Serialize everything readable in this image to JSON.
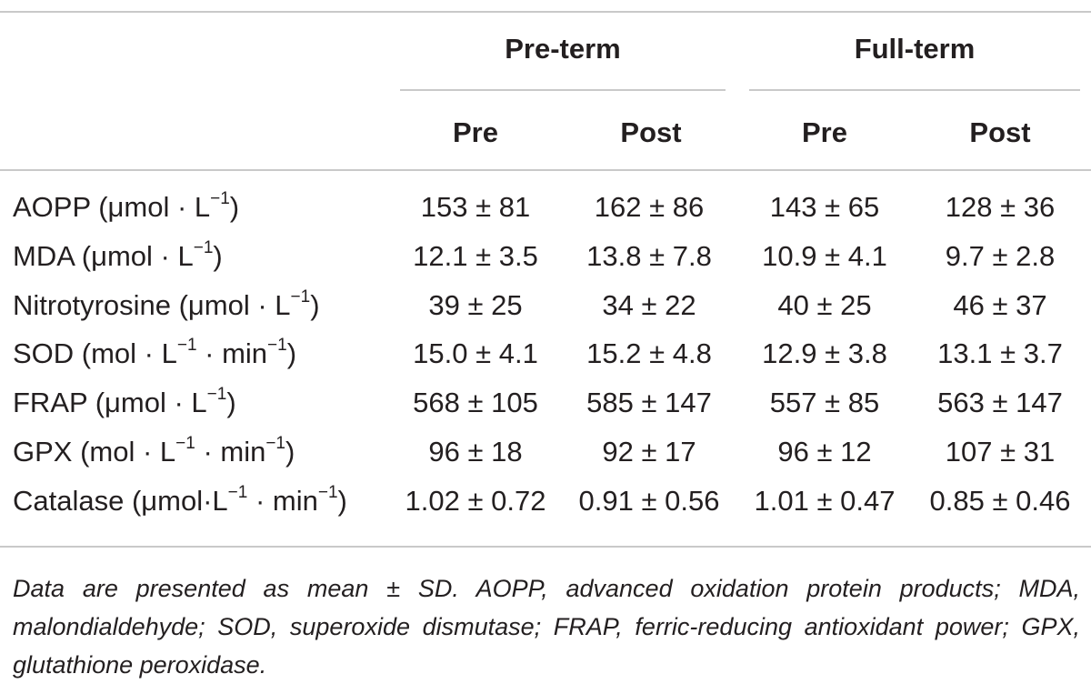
{
  "header": {
    "groups": [
      "Pre-term",
      "Full-term"
    ],
    "subcols": [
      "Pre",
      "Post",
      "Pre",
      "Post"
    ]
  },
  "rows": [
    {
      "label_main": "AOPP (μmol · L",
      "label_sup1": "−1",
      "label_mid": ")",
      "label_sup2": "",
      "label_end": "",
      "values": [
        "153 ± 81",
        "162 ± 86",
        "143 ± 65",
        "128 ± 36"
      ]
    },
    {
      "label_main": "MDA (μmol · L",
      "label_sup1": "−1",
      "label_mid": ")",
      "label_sup2": "",
      "label_end": "",
      "values": [
        "12.1 ± 3.5",
        "13.8 ± 7.8",
        "10.9 ± 4.1",
        "9.7 ± 2.8"
      ]
    },
    {
      "label_main": "Nitrotyrosine (μmol · L",
      "label_sup1": "−1",
      "label_mid": ")",
      "label_sup2": "",
      "label_end": "",
      "values": [
        "39 ± 25",
        "34 ± 22",
        "40 ± 25",
        "46 ± 37"
      ]
    },
    {
      "label_main": "SOD (mol · L",
      "label_sup1": "−1",
      "label_mid": " · min",
      "label_sup2": "−1",
      "label_end": ")",
      "values": [
        "15.0 ± 4.1",
        "15.2 ± 4.8",
        "12.9 ± 3.8",
        "13.1 ± 3.7"
      ]
    },
    {
      "label_main": "FRAP (μmol · L",
      "label_sup1": "−1",
      "label_mid": ")",
      "label_sup2": "",
      "label_end": "",
      "values": [
        "568 ± 105",
        "585 ± 147",
        "557 ± 85",
        "563 ± 147"
      ]
    },
    {
      "label_main": "GPX (mol · L",
      "label_sup1": "−1",
      "label_mid": " · min",
      "label_sup2": "−1",
      "label_end": ")",
      "values": [
        "96 ± 18",
        "92 ± 17",
        "96 ± 12",
        "107 ± 31"
      ]
    },
    {
      "label_main": "Catalase (μmol·L",
      "label_sup1": "−1",
      "label_mid": " · min",
      "label_sup2": "−1",
      "label_end": ")",
      "values": [
        "1.02 ± 0.72",
        "0.91 ± 0.56",
        "1.01 ± 0.47",
        "0.85 ± 0.46"
      ]
    }
  ],
  "footnote": "Data are presented as mean ± SD. AOPP, advanced oxidation protein products; MDA, malondialdehyde; SOD, superoxide dismutase; FRAP, ferric-reducing antioxidant power; GPX, glutathione peroxidase."
}
